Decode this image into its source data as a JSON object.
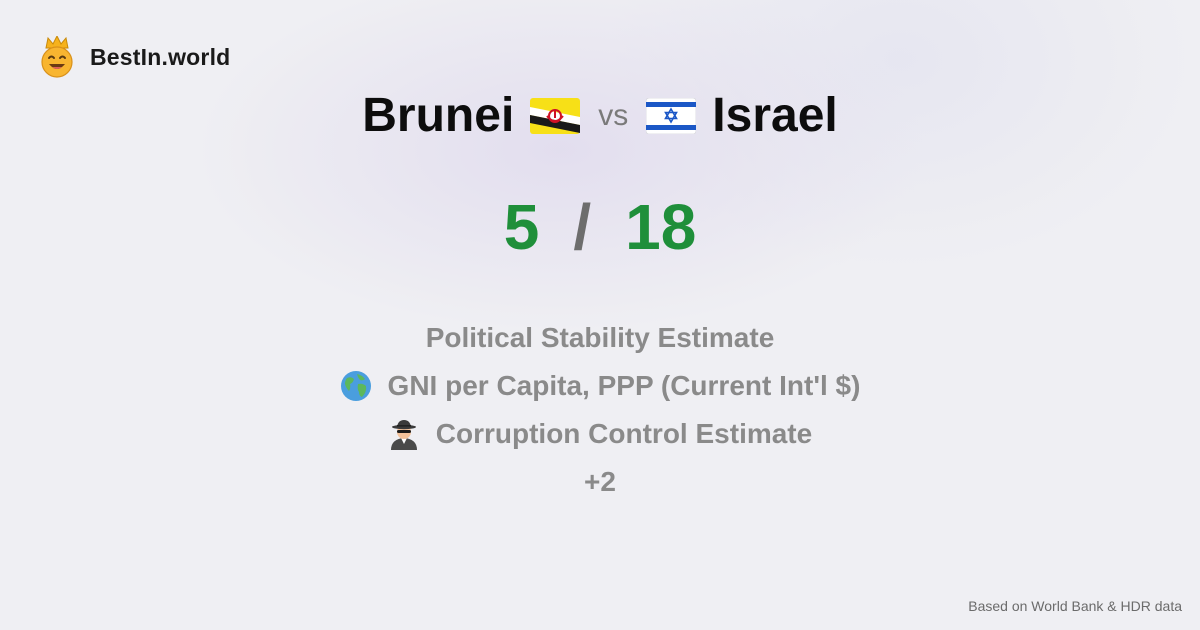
{
  "brand": {
    "name": "BestIn.world",
    "icon": "crowned-smiley-icon"
  },
  "comparison": {
    "left": {
      "country": "Brunei",
      "flag": "brunei-flag-icon"
    },
    "vs_label": "vs",
    "right": {
      "country": "Israel",
      "flag": "israel-flag-icon"
    }
  },
  "score": {
    "left": "5",
    "separator": "/",
    "right": "18"
  },
  "metrics": [
    {
      "icon": "",
      "label": "Political Stability Estimate"
    },
    {
      "icon": "globe-icon",
      "label": "GNI per Capita, PPP (Current Int'l $)"
    },
    {
      "icon": "spy-icon",
      "label": "Corruption Control Estimate"
    },
    {
      "icon": "",
      "label": "+2"
    }
  ],
  "footer": {
    "source": "Based on World Bank & HDR data"
  },
  "colors": {
    "score": "#1f8f3a",
    "metric_text": "#8a8a8a"
  }
}
